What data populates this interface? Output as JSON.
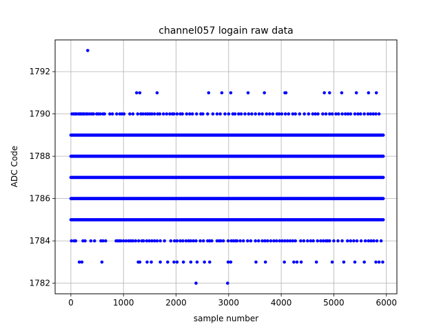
{
  "chart_data": {
    "type": "scatter",
    "title": "channel057 logain raw data",
    "xlabel": "sample number",
    "ylabel": "ADC Code",
    "xlim": [
      -300,
      6200
    ],
    "ylim": [
      1781.5,
      1793.5
    ],
    "xticks": [
      0,
      1000,
      2000,
      3000,
      4000,
      5000,
      6000
    ],
    "yticks": [
      1782,
      1784,
      1786,
      1788,
      1790,
      1792
    ],
    "xtick_labels": [
      "0",
      "1000",
      "2000",
      "3000",
      "4000",
      "5000",
      "6000"
    ],
    "ytick_labels": [
      "1782",
      "1784",
      "1786",
      "1788",
      "1790",
      "1792"
    ],
    "grid": true,
    "marker_color": "#0000ff",
    "dense_x_range": [
      0,
      5950
    ],
    "dense_levels": [
      1785,
      1786,
      1787,
      1788,
      1789
    ],
    "sparse_points": {
      "1790": [
        20,
        55,
        85,
        110,
        150,
        175,
        195,
        230,
        250,
        290,
        320,
        360,
        400,
        430,
        490,
        520,
        560,
        610,
        640,
        740,
        790,
        870,
        930,
        970,
        1010,
        1120,
        1180,
        1270,
        1330,
        1370,
        1420,
        1460,
        1500,
        1540,
        1590,
        1650,
        1690,
        1760,
        1820,
        1880,
        1930,
        1960,
        2020,
        2080,
        2120,
        2200,
        2260,
        2310,
        2390,
        2470,
        2510,
        2600,
        2700,
        2780,
        2840,
        2930,
        3000,
        3080,
        3120,
        3190,
        3240,
        3310,
        3380,
        3440,
        3510,
        3580,
        3640,
        3720,
        3780,
        3840,
        3920,
        3960,
        4010,
        4080,
        4140,
        4220,
        4270,
        4350,
        4440,
        4520,
        4600,
        4650,
        4700,
        4790,
        4850,
        4920,
        4970,
        5040,
        5090,
        5160,
        5220,
        5270,
        5320,
        5400,
        5460,
        5510,
        5580,
        5650,
        5700,
        5750,
        5800,
        5860
      ],
      "1784": [
        10,
        60,
        90,
        230,
        270,
        380,
        450,
        570,
        610,
        660,
        860,
        890,
        920,
        950,
        1000,
        1050,
        1100,
        1140,
        1180,
        1230,
        1290,
        1350,
        1380,
        1440,
        1490,
        1540,
        1590,
        1640,
        1700,
        1780,
        1900,
        1970,
        2020,
        2080,
        2130,
        2190,
        2240,
        2280,
        2330,
        2380,
        2460,
        2520,
        2600,
        2640,
        2680,
        2780,
        2820,
        2850,
        2900,
        2990,
        3050,
        3090,
        3130,
        3160,
        3220,
        3280,
        3360,
        3420,
        3510,
        3570,
        3640,
        3690,
        3740,
        3800,
        3860,
        3910,
        3970,
        4020,
        4070,
        4120,
        4170,
        4220,
        4270,
        4370,
        4430,
        4500,
        4560,
        4610,
        4690,
        4750,
        4800,
        4850,
        4880,
        4920,
        5000,
        5080,
        5160,
        5260,
        5320,
        5380,
        5440,
        5520,
        5600,
        5660,
        5710,
        5760,
        5820,
        5900
      ],
      "1783": [
        160,
        210,
        590,
        1280,
        1310,
        1450,
        1530,
        1700,
        1840,
        1960,
        2020,
        2140,
        2280,
        2400,
        2540,
        2640,
        2990,
        3040,
        3520,
        3700,
        4060,
        4240,
        4300,
        4380,
        4670,
        4970,
        5190,
        5400,
        5580,
        5800,
        5860,
        5930
      ],
      "1791": [
        1250,
        1310,
        1640,
        2620,
        2870,
        3040,
        3370,
        3680,
        4070,
        4090,
        4820,
        4920,
        5150,
        5430,
        5660,
        5810
      ],
      "1793": [
        320
      ],
      "1782": [
        2380,
        2980
      ]
    }
  }
}
